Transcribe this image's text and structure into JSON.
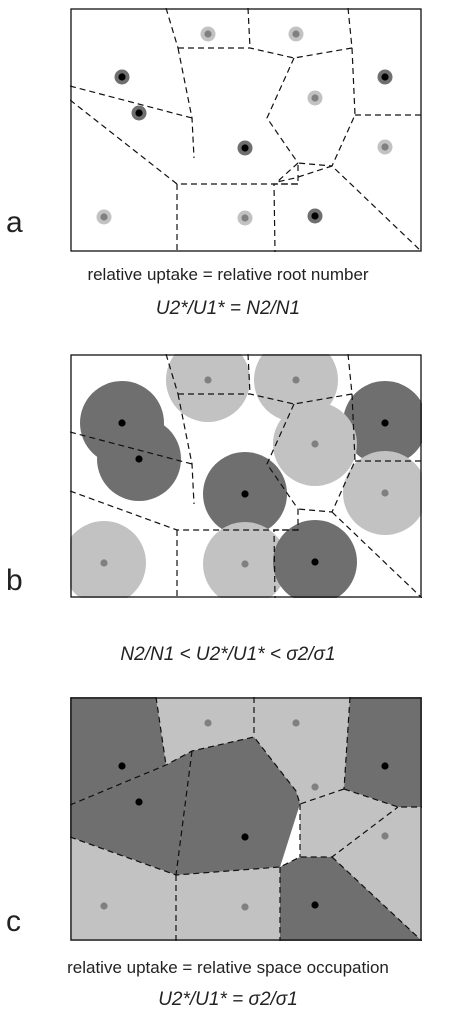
{
  "panel_a": {
    "label": "a"
  },
  "caption_a": {
    "text": "relative uptake = relative root number",
    "equation": "U2*/U1* = N2/N1"
  },
  "panel_b": {
    "label": "b"
  },
  "caption_b": {
    "equation": "N2/N1 < U2*/U1* < σ2/σ1"
  },
  "panel_c": {
    "label": "c"
  },
  "caption_c": {
    "text": "relative uptake = relative space occupation",
    "equation": "U2*/U1* = σ2/σ1"
  },
  "colors": {
    "species1_dark": "#6f6f6f",
    "species2_light": "#c2c2c2",
    "dark_root_center": "#000000",
    "light_root_center": "#808080",
    "border": "#111111"
  },
  "roots": [
    {
      "species": "dark"
    },
    {
      "species": "light"
    },
    {
      "species": "light"
    },
    {
      "species": "dark"
    },
    {
      "species": "dark"
    },
    {
      "species": "light"
    },
    {
      "species": "dark"
    },
    {
      "species": "light"
    },
    {
      "species": "light"
    },
    {
      "species": "light"
    },
    {
      "species": "dark"
    }
  ]
}
